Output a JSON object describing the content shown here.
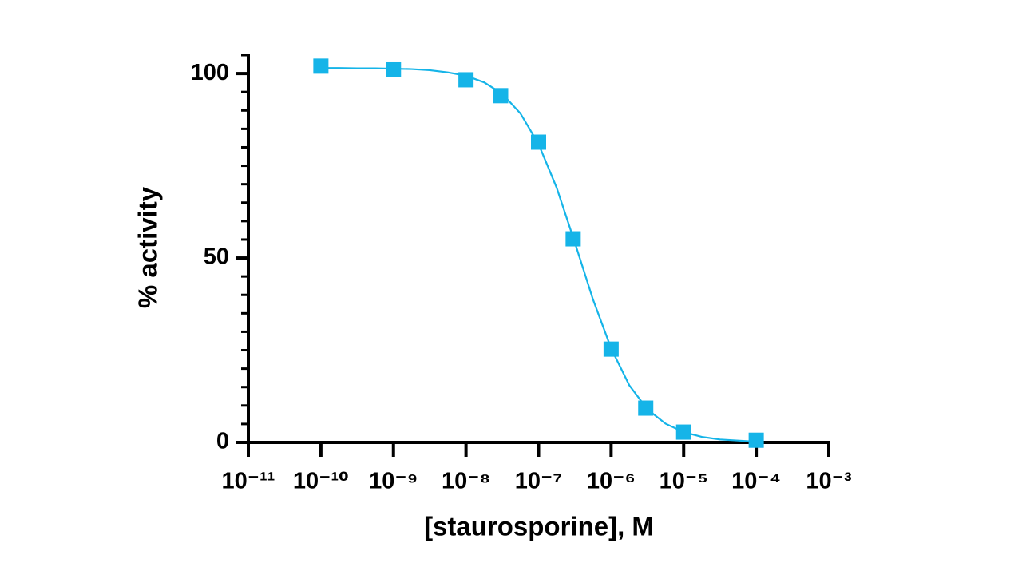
{
  "chart_data": {
    "type": "scatter",
    "x_label": "[staurosporine], M",
    "y_label": "% activity",
    "x_scale": "log",
    "color": "#15b4e8",
    "x": [
      1e-10,
      1e-09,
      1e-08,
      3e-08,
      1e-07,
      3e-07,
      1e-06,
      3e-06,
      1e-05,
      0.0001
    ],
    "values": [
      102,
      101,
      98.3,
      94,
      81.4,
      55.2,
      25.3,
      9.3,
      2.8,
      0.6
    ],
    "fit": {
      "x": [
        1e-10,
        1.78e-10,
        3.16e-10,
        5.62e-10,
        1e-09,
        1.78e-09,
        3.16e-09,
        5.62e-09,
        1e-08,
        1.78e-08,
        3.16e-08,
        5.62e-08,
        1e-07,
        1.78e-07,
        3.16e-07,
        5.62e-07,
        1e-06,
        1.78e-06,
        3.16e-06,
        5.62e-06,
        1e-05,
        1.78e-05,
        3.16e-05,
        5.62e-05,
        0.0001
      ],
      "values": [
        101.5,
        101.5,
        101.4,
        101.4,
        101.3,
        101.2,
        100.9,
        100.3,
        99.4,
        97.6,
        94.5,
        89.2,
        80.9,
        69.0,
        54.2,
        38.8,
        25.5,
        15.5,
        9.0,
        5.1,
        2.8,
        1.5,
        0.8,
        0.5,
        0.2
      ]
    },
    "xlim": [
      1e-11,
      0.001
    ],
    "xticks": [
      {
        "value": 1e-11,
        "label": "10⁻¹¹"
      },
      {
        "value": 1e-10,
        "label": "10⁻¹⁰"
      },
      {
        "value": 1e-09,
        "label": "10⁻⁹"
      },
      {
        "value": 1e-08,
        "label": "10⁻⁸"
      },
      {
        "value": 1e-07,
        "label": "10⁻⁷"
      },
      {
        "value": 1e-06,
        "label": "10⁻⁶"
      },
      {
        "value": 1e-05,
        "label": "10⁻⁵"
      },
      {
        "value": 0.0001,
        "label": "10⁻⁴"
      },
      {
        "value": 0.001,
        "label": "10⁻³"
      }
    ],
    "ylim": [
      0,
      105
    ],
    "yticks": [
      0,
      50,
      100
    ],
    "yminor_ticks": [
      5,
      10,
      15,
      20,
      25,
      30,
      35,
      40,
      45,
      55,
      60,
      65,
      70,
      75,
      80,
      85,
      90,
      95,
      105
    ],
    "grid": false
  }
}
